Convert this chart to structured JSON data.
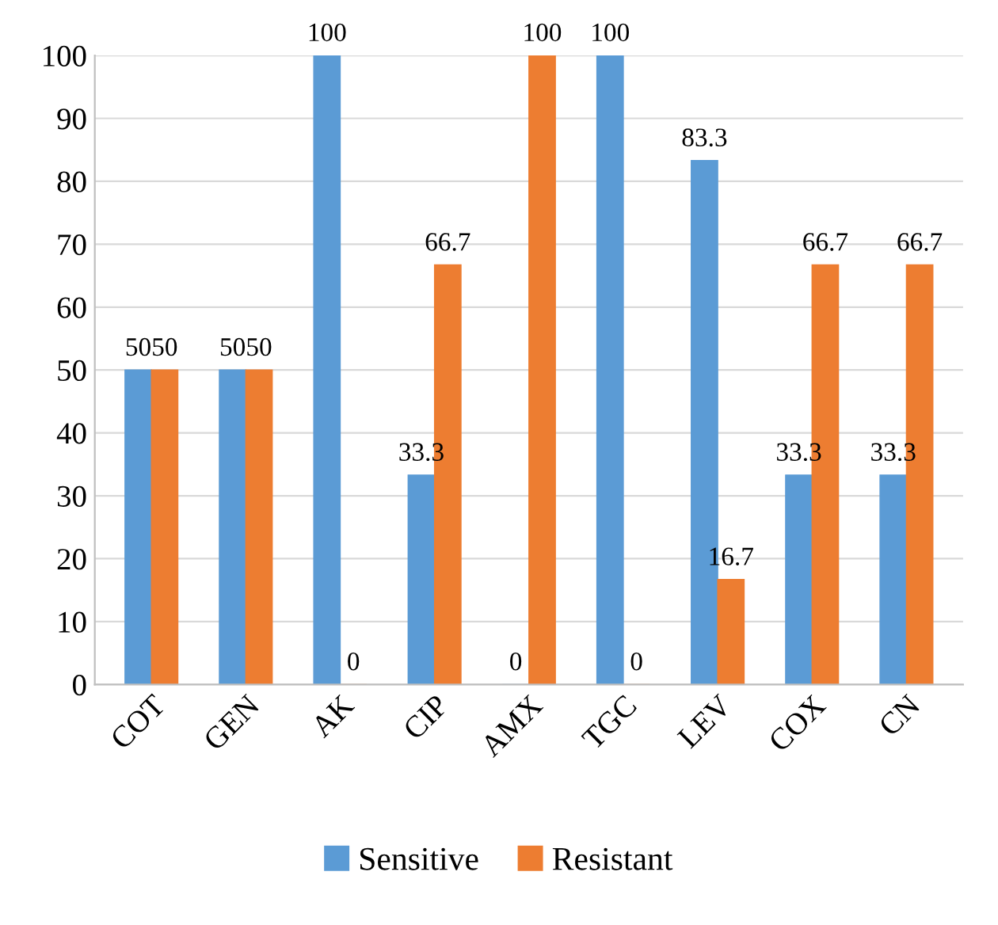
{
  "chart_data": {
    "type": "bar",
    "categories": [
      "COT",
      "GEN",
      "AK",
      "CIP",
      "AMX",
      "TGC",
      "LEV",
      "COX",
      "CN"
    ],
    "series": [
      {
        "name": "Sensitive",
        "color": "#5b9bd5",
        "values": [
          50,
          50,
          100,
          33.3,
          0,
          100,
          83.3,
          33.3,
          33.3
        ]
      },
      {
        "name": "Resistant",
        "color": "#ed7d31",
        "values": [
          50,
          50,
          0,
          66.7,
          100,
          0,
          16.7,
          66.7,
          66.7
        ]
      }
    ],
    "ylim": [
      0,
      100
    ],
    "yticks": [
      0,
      10,
      20,
      30,
      40,
      50,
      60,
      70,
      80,
      90,
      100
    ],
    "grid": "y",
    "legend": "bottom",
    "data_labels": true
  }
}
